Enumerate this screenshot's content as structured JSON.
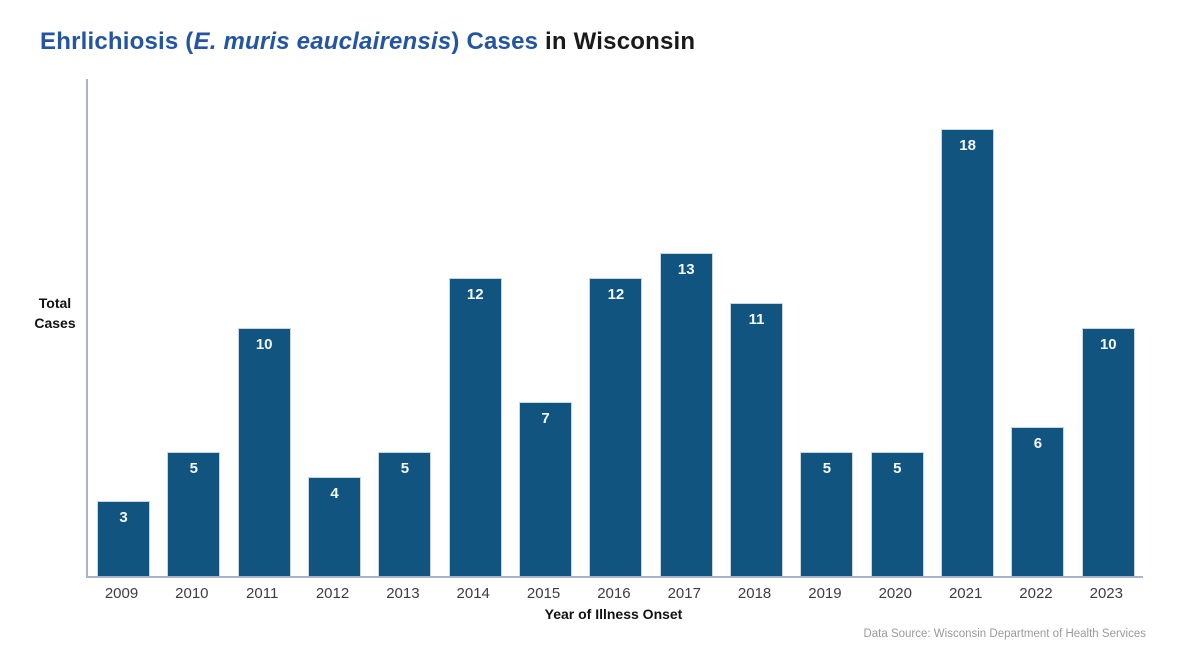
{
  "title": {
    "part1": "Ehrlichiosis (",
    "part2": "E. muris eauclairensis",
    "part3": ") Cases",
    "part4": " in Wisconsin"
  },
  "footer": {
    "source": "Data Source: Wisconsin Department of Health Services"
  },
  "colors": {
    "bar_fill": "#115480",
    "bar_border": "#c9d6e2",
    "title_accent": "#2355a3",
    "axis_line": "#a9b4c9",
    "tick_text": "#3d3d3d",
    "source_text": "#9a9a9a"
  },
  "chart_data": {
    "type": "bar",
    "title": "Ehrlichiosis (E. muris eauclairensis) Cases in Wisconsin",
    "categories": [
      "2009",
      "2010",
      "2011",
      "2012",
      "2013",
      "2014",
      "2015",
      "2016",
      "2017",
      "2018",
      "2019",
      "2020",
      "2021",
      "2022",
      "2023"
    ],
    "values": [
      3,
      5,
      10,
      4,
      5,
      12,
      7,
      12,
      13,
      11,
      5,
      5,
      18,
      6,
      10
    ],
    "xlabel": "Year of Illness Onset",
    "ylabel": "Total\nCases",
    "ylim": [
      0,
      20
    ],
    "grid": false,
    "legend": "none",
    "data_labels": "inside-top, white bold",
    "bar_color": "#115480"
  }
}
